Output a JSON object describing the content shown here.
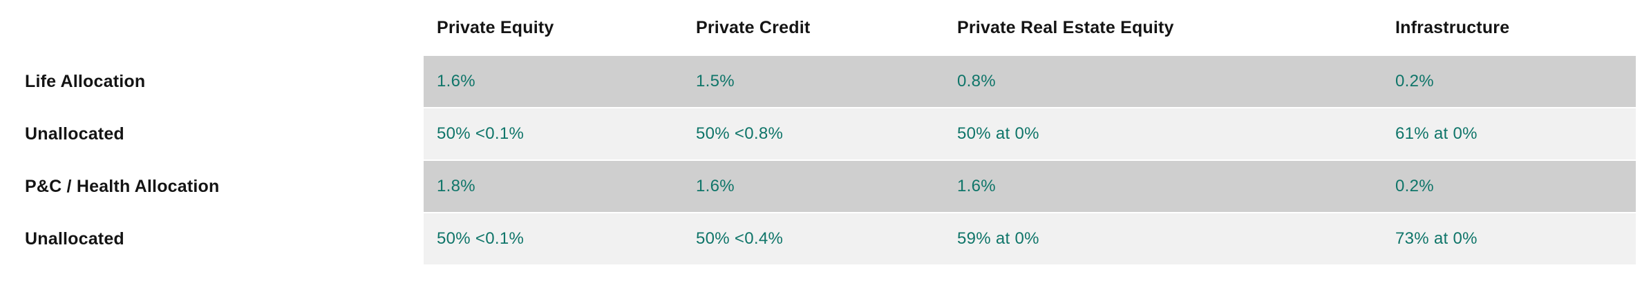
{
  "table": {
    "columns": [
      {
        "id": "private-equity",
        "label": "Private Equity"
      },
      {
        "id": "private-credit",
        "label": "Private Credit"
      },
      {
        "id": "private-real-estate-equity",
        "label": "Private Real Estate Equity"
      },
      {
        "id": "infrastructure",
        "label": "Infrastructure"
      }
    ],
    "rows": [
      {
        "label": "Life Allocation",
        "shade": "dark",
        "values": [
          "1.6%",
          "1.5%",
          "0.8%",
          "0.2%"
        ]
      },
      {
        "label": "Unallocated",
        "shade": "light",
        "values": [
          "50% <0.1%",
          "50% <0.8%",
          "50% at 0%",
          "61% at 0%"
        ]
      },
      {
        "label": "P&C / Health Allocation",
        "shade": "dark",
        "values": [
          "1.8%",
          "1.6%",
          "1.6%",
          "0.2%"
        ]
      },
      {
        "label": "Unallocated",
        "shade": "light",
        "values": [
          "50% <0.1%",
          "50% <0.4%",
          "59% at 0%",
          "73% at 0%"
        ]
      }
    ],
    "colors": {
      "row_dark": "#cfcfcf",
      "row_light": "#f1f1f1",
      "value_text": "#0f7569",
      "label_text": "#141414"
    }
  }
}
